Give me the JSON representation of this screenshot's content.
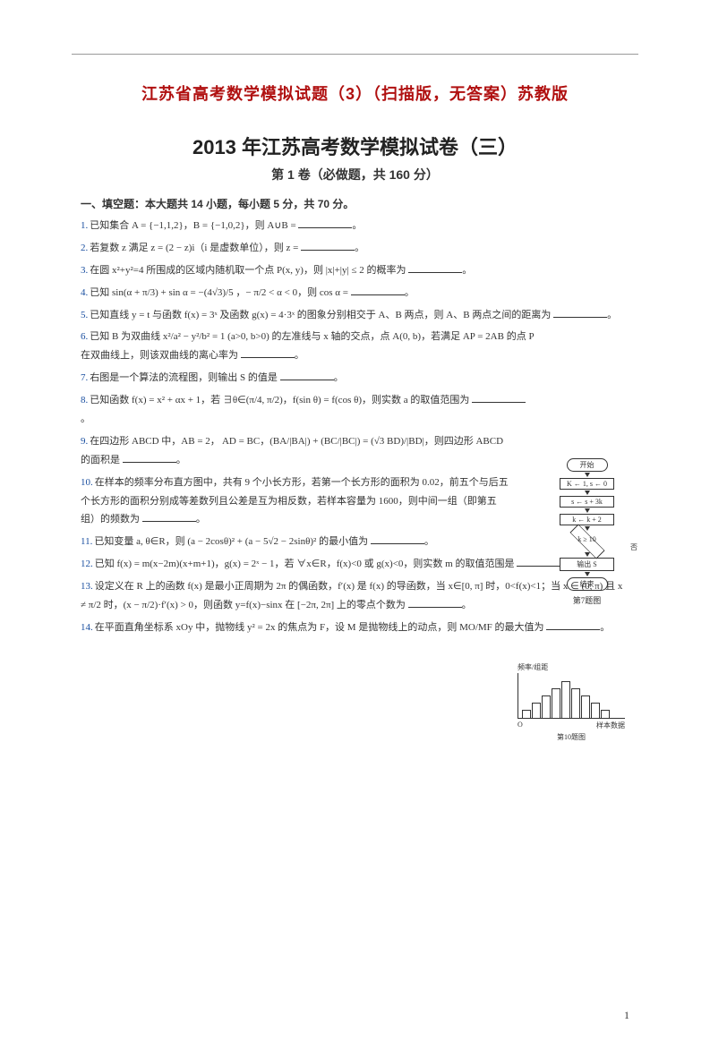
{
  "colors": {
    "accent": "#b01010",
    "num_color": "#1a4fa0",
    "text": "#333333",
    "bg": "#ffffff"
  },
  "header_red": "江苏省高考数学模拟试题（3）（扫描版，无答案）苏教版",
  "title_main": "2013 年江苏高考数学模拟试卷（三）",
  "title_sub": "第 1 卷（必做题，共 160 分）",
  "section_head": "一、填空题：本大题共 14 小题，每小题 5 分，共 70 分。",
  "questions": [
    {
      "n": "1.",
      "text": "已知集合 A = {−1,1,2}，B = {−1,0,2}，则 A∪B = ________。"
    },
    {
      "n": "2.",
      "text": "若复数 z 满足 z = (2 − z)i（i 是虚数单位），则 z = ________。"
    },
    {
      "n": "3.",
      "text": "在圆 x²+y²=4 所围成的区域内随机取一个点 P(x, y)，则 |x|+|y| ≤ 2 的概率为 ________。"
    },
    {
      "n": "4.",
      "text": "已知 sin(α + π/3) + sin α = −(4√3)/5 ，− π/2 < α < 0，则 cos α = ________。"
    },
    {
      "n": "5.",
      "text": "已知直线 y = t 与函数 f(x) = 3ˣ 及函数 g(x) = 4·3ˣ 的图象分别相交于 A、B 两点，则 A、B 两点之间的距离为 ________。"
    },
    {
      "n": "6.",
      "text": "已知 B 为双曲线 x²/a² − y²/b² = 1 (a>0, b>0) 的左准线与 x 轴的交点，点 A(0, b)，若满足 AP = 2AB 的点 P 在双曲线上，则该双曲线的离心率为 ________。",
      "cls": "q6"
    },
    {
      "n": "7.",
      "text": "右图是一个算法的流程图，则输出 S 的值是 ________。",
      "cls": "q7"
    },
    {
      "n": "8.",
      "text": "已知函数 f(x) = x² + αx + 1，若 ∃θ∈(π/4, π/2)，f(sin θ) = f(cos θ)，则实数 a 的取值范围为 ________。",
      "cls": "q8"
    },
    {
      "n": "9.",
      "text": "在四边形 ABCD 中，AB = 2， AD = BC，(BA/|BA|) + (BC/|BC|) = (√3 BD)/|BD|，则四边形 ABCD 的面积是 ________。",
      "cls": "q9"
    },
    {
      "n": "10.",
      "text": "在样本的频率分布直方图中，共有 9 个小长方形，若第一个长方形的面积为 0.02，前五个与后五个长方形的面积分别成等差数列且公差是互为相反数，若样本容量为 1600，则中间一组（即第五组）的频数为 ________。",
      "cls": "q10"
    },
    {
      "n": "11.",
      "text": "已知变量 a, θ∈R，则 (a − 2cosθ)² + (a − 5√2 − 2sinθ)² 的最小值为 ________。"
    },
    {
      "n": "12.",
      "text": "已知 f(x) = m(x−2m)(x+m+1)，g(x) = 2ˣ − 1，若 ∀x∈R，f(x)<0 或 g(x)<0，则实数 m 的取值范围是 ________。"
    },
    {
      "n": "13.",
      "text": "设定义在 R 上的函数 f(x) 是最小正周期为 2π 的偶函数，f′(x) 是 f(x) 的导函数，当 x∈[0, π] 时，0<f(x)<1；当 x ∈ (0, π) 且 x ≠ π/2 时，(x − π/2)·f′(x) > 0，则函数 y=f(x)−sinx 在 [−2π, 2π] 上的零点个数为 ________。"
    },
    {
      "n": "14.",
      "text": "在平面直角坐标系 xOy 中，抛物线 y² = 2x 的焦点为 F，设 M 是抛物线上的动点，则 MO/MF 的最大值为 ________。"
    }
  ],
  "flowchart": {
    "start": "开始",
    "b1": "K ← 1, s ← 0",
    "b2": "s ← s + 3k",
    "b3": "k ← k + 2",
    "cond": "k ≥ 10",
    "out": "输出 S",
    "end": "结束",
    "no": "否",
    "caption": "第7题图"
  },
  "histogram": {
    "ylabel": "频率/组距",
    "xlabel": "样本数据",
    "caption": "第10题图",
    "bars": [
      8,
      16,
      24,
      32,
      40,
      32,
      24,
      16,
      8
    ],
    "origin": "O"
  },
  "page_num": "1"
}
